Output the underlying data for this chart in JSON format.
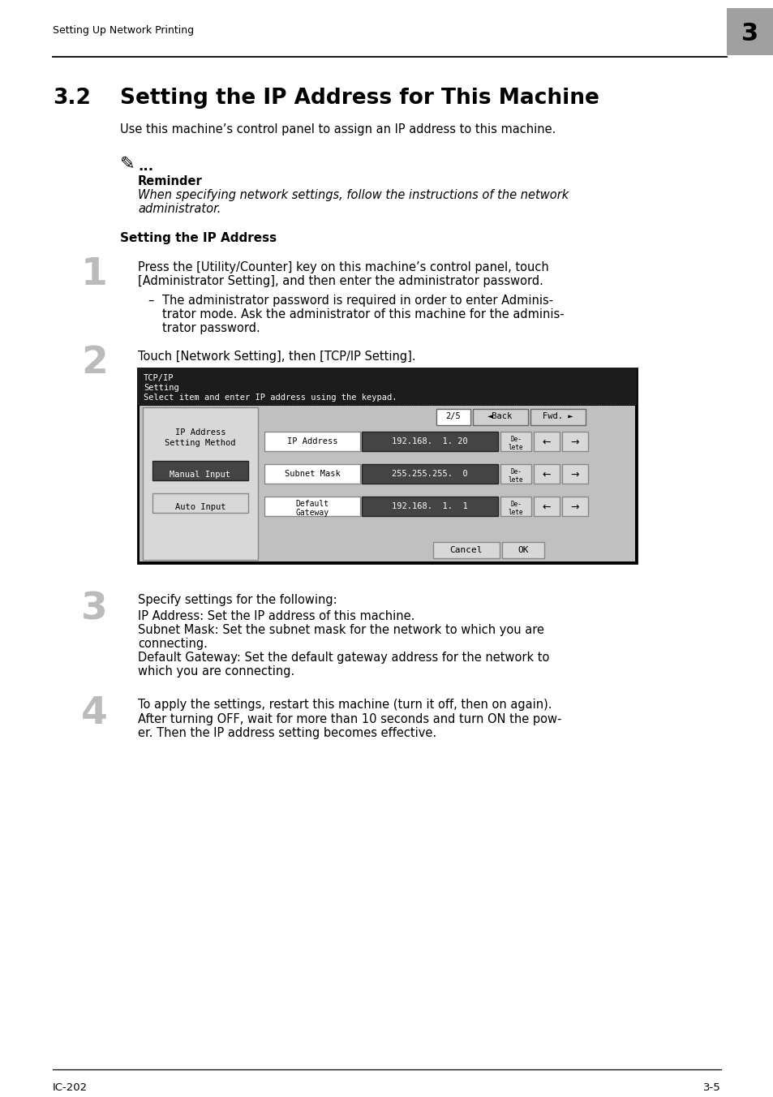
{
  "page_bg": "#ffffff",
  "header_text": "Setting Up Network Printing",
  "header_number": "3",
  "header_number_bg": "#a0a0a0",
  "footer_left": "IC-202",
  "footer_right": "3-5",
  "section_number": "3.2",
  "section_title": "Setting the IP Address for This Machine",
  "intro_text": "Use this machine’s control panel to assign an IP address to this machine.",
  "reminder_label": "Reminder",
  "reminder_italic_1": "When specifying network settings, follow the instructions of the network",
  "reminder_italic_2": "administrator.",
  "subheading": "Setting the IP Address",
  "step1_num": "1",
  "step1_line1": "Press the [Utility/Counter] key on this machine’s control panel, touch",
  "step1_line2": "[Administrator Setting], and then enter the administrator password.",
  "step1_sub1": "The administrator password is required in order to enter Adminis-",
  "step1_sub2": "trator mode. Ask the administrator of this machine for the adminis-",
  "step1_sub3": "trator password.",
  "step2_num": "2",
  "step2_text": "Touch [Network Setting], then [TCP/IP Setting].",
  "step3_num": "3",
  "step3_text": "Specify settings for the following:",
  "step3_d1": "IP Address: Set the IP address of this machine.",
  "step3_d2": "Subnet Mask: Set the subnet mask for the network to which you are",
  "step3_d3": "connecting.",
  "step3_d4": "Default Gateway: Set the default gateway address for the network to",
  "step3_d5": "which you are connecting.",
  "step4_num": "4",
  "step4_text": "To apply the settings, restart this machine (turn it off, then on again).",
  "step4_d1": "After turning OFF, wait for more than 10 seconds and turn ON the pow-",
  "step4_d2": "er. Then the IP address setting becomes effective.",
  "screen_header1": "TCP/IP",
  "screen_header2": "Setting",
  "screen_prompt": "Select item and enter IP address using the keypad.",
  "screen_page": "2/5"
}
